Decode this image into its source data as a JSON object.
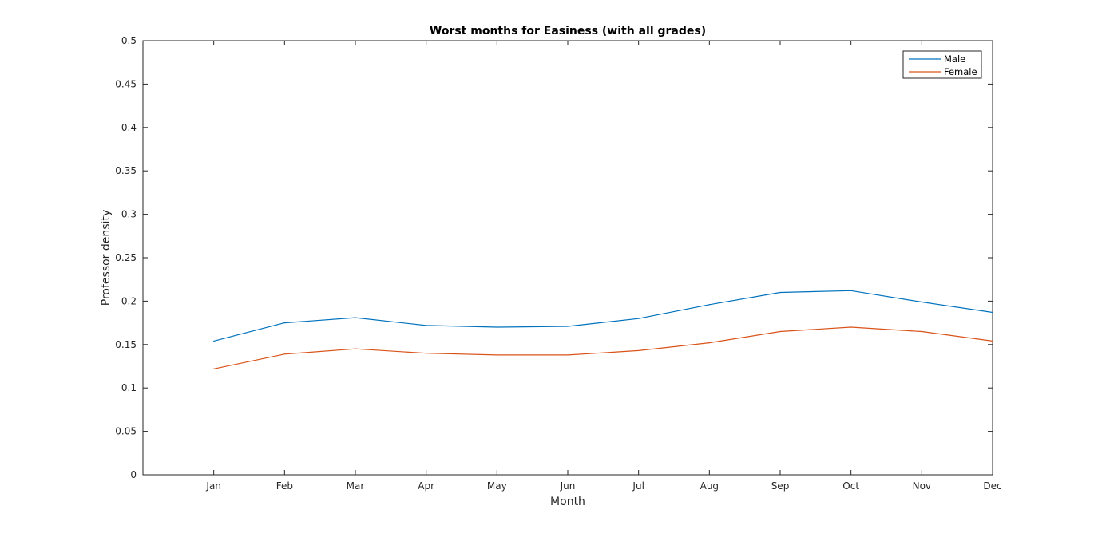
{
  "chart_data": {
    "type": "line",
    "title": "Worst months for Easiness (with all grades)",
    "xlabel": "Month",
    "ylabel": "Professor density",
    "categories": [
      "Jan",
      "Feb",
      "Mar",
      "Apr",
      "May",
      "Jun",
      "Jul",
      "Aug",
      "Sep",
      "Oct",
      "Nov",
      "Dec"
    ],
    "xlim": [
      0,
      12
    ],
    "ylim": [
      0,
      0.5
    ],
    "yticks": [
      "0",
      "0.05",
      "0.1",
      "0.15",
      "0.2",
      "0.25",
      "0.3",
      "0.35",
      "0.4",
      "0.45",
      "0.5"
    ],
    "grid": false,
    "legend_position": "top-right",
    "series": [
      {
        "name": "Male",
        "color": "#0072bd",
        "values": [
          0.154,
          0.175,
          0.181,
          0.172,
          0.17,
          0.171,
          0.18,
          0.196,
          0.21,
          0.212,
          0.199,
          0.187
        ]
      },
      {
        "name": "Female",
        "color": "#d95319",
        "values": [
          0.122,
          0.139,
          0.145,
          0.14,
          0.138,
          0.138,
          0.143,
          0.152,
          0.165,
          0.17,
          0.165,
          0.154
        ]
      }
    ]
  }
}
